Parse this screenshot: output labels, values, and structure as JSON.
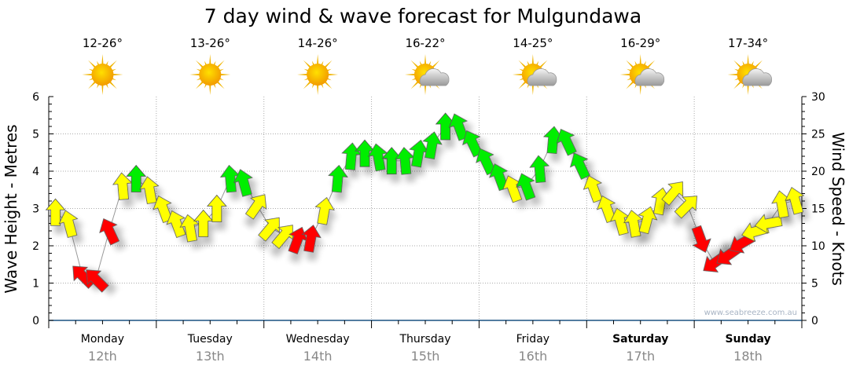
{
  "chart_data": {
    "type": "scatter",
    "title": "7 day wind & wave forecast for Mulgundawa",
    "ylabel_left": "Wave Height - Metres",
    "ylabel_right": "Wind Speed - Knots",
    "ylim_left": [
      0,
      6
    ],
    "ylim_right": [
      0,
      30
    ],
    "yticks_left": [
      "0",
      "1",
      "2",
      "3",
      "4",
      "5",
      "6"
    ],
    "yticks_right": [
      "0",
      "5",
      "10",
      "15",
      "20",
      "25",
      "30"
    ],
    "grid": true,
    "watermark": "www.seabreeze.com.au",
    "days": [
      {
        "day": "Monday",
        "date": "12th",
        "temp": "12-26°",
        "weather": "sunny",
        "bold": false
      },
      {
        "day": "Tuesday",
        "date": "13th",
        "temp": "13-26°",
        "weather": "sunny",
        "bold": false
      },
      {
        "day": "Wednesday",
        "date": "14th",
        "temp": "14-26°",
        "weather": "sunny",
        "bold": false
      },
      {
        "day": "Thursday",
        "date": "15th",
        "temp": "16-22°",
        "weather": "partly-cloudy",
        "bold": false
      },
      {
        "day": "Friday",
        "date": "16th",
        "temp": "14-25°",
        "weather": "partly-cloudy",
        "bold": false
      },
      {
        "day": "Saturday",
        "date": "17th",
        "temp": "16-29°",
        "weather": "partly-cloudy",
        "bold": true
      },
      {
        "day": "Sunday",
        "date": "18th",
        "temp": "17-34°",
        "weather": "partly-cloudy",
        "bold": true
      }
    ],
    "colors": {
      "green": "#00ee00",
      "yellow": "#ffff00",
      "red": "#ff0000"
    },
    "wind_series": {
      "name": "Wind",
      "interval_hours": 3,
      "speed_knots": [
        14.5,
        13,
        6,
        5.5,
        12,
        18,
        19,
        17.5,
        15,
        13,
        12.4,
        13,
        15,
        19,
        18.5,
        15.4,
        12.4,
        11.4,
        10.8,
        11,
        14.7,
        19,
        22,
        22.4,
        21.9,
        21.4,
        21.4,
        22.4,
        23.5,
        26,
        26,
        23.8,
        21.4,
        19.3,
        17.7,
        18,
        20.3,
        24.2,
        24,
        20.8,
        17.7,
        15,
        13.3,
        13,
        13.5,
        16,
        17.2,
        15.4,
        10.8,
        7.7,
        8.7,
        10.3,
        11.9,
        13,
        15.6,
        16.1
      ],
      "arrow_bearing_deg": [
        0,
        -15,
        -45,
        -45,
        -25,
        -5,
        0,
        -10,
        -20,
        -20,
        -10,
        0,
        0,
        -5,
        -15,
        35,
        40,
        40,
        20,
        10,
        10,
        5,
        5,
        0,
        -10,
        0,
        -5,
        10,
        10,
        0,
        -20,
        -25,
        -25,
        -20,
        -20,
        -20,
        -5,
        5,
        -25,
        -25,
        -20,
        -20,
        -15,
        -10,
        15,
        10,
        40,
        45,
        160,
        -125,
        -125,
        -120,
        -105,
        -100,
        -10,
        -15
      ],
      "color": [
        "yellow",
        "yellow",
        "red",
        "red",
        "red",
        "yellow",
        "green",
        "yellow",
        "yellow",
        "yellow",
        "yellow",
        "yellow",
        "yellow",
        "green",
        "green",
        "yellow",
        "yellow",
        "yellow",
        "red",
        "red",
        "yellow",
        "green",
        "green",
        "green",
        "green",
        "green",
        "green",
        "green",
        "green",
        "green",
        "green",
        "green",
        "green",
        "green",
        "yellow",
        "green",
        "green",
        "green",
        "green",
        "green",
        "yellow",
        "yellow",
        "yellow",
        "yellow",
        "yellow",
        "yellow",
        "yellow",
        "yellow",
        "red",
        "red",
        "red",
        "red",
        "yellow",
        "yellow",
        "yellow",
        "yellow"
      ]
    }
  }
}
